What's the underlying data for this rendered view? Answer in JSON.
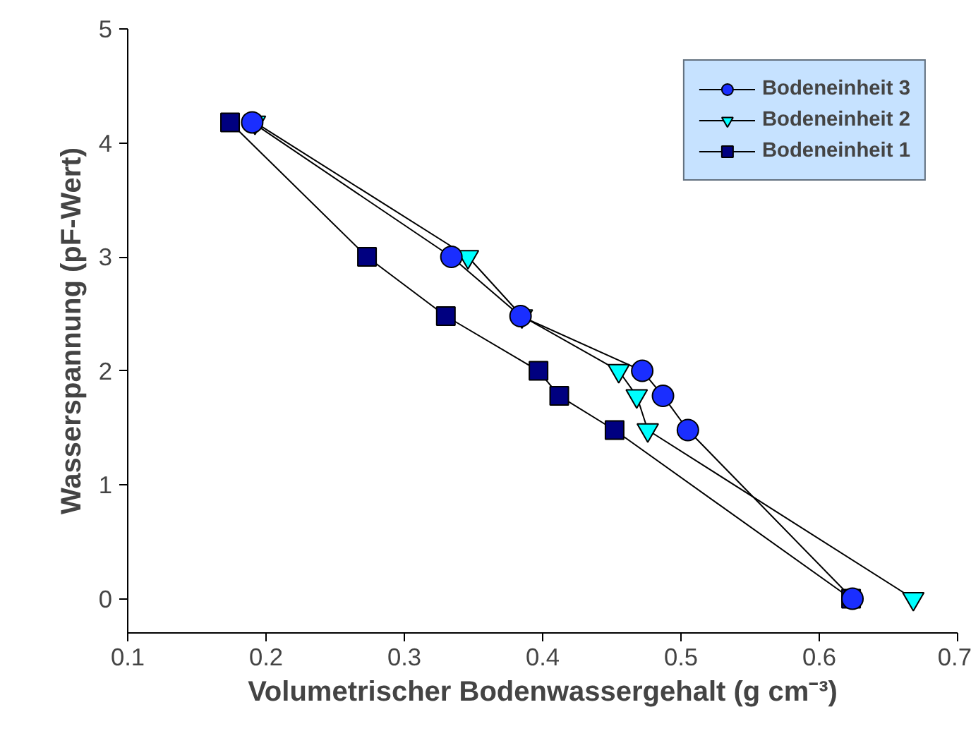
{
  "chart_data": {
    "type": "line",
    "xlabel": "Volumetrischer Bodenwassergehalt (g cm⁻³)",
    "ylabel": "Wasserspannung (pF-Wert)",
    "xlim": [
      0.1,
      0.7
    ],
    "xticks": [
      0.1,
      0.2,
      0.3,
      0.4,
      0.5,
      0.6,
      0.7
    ],
    "ylim": [
      -0.3,
      5
    ],
    "yticks": [
      0,
      1,
      2,
      3,
      4,
      5
    ],
    "grid": false,
    "legend": "top right",
    "series": [
      {
        "name": "Bodeneinheit 3",
        "color": "#1a2eff",
        "marker": "circle",
        "x": [
          0.19,
          0.334,
          0.384,
          0.472,
          0.487,
          0.505,
          0.624
        ],
        "values": [
          4.18,
          3.0,
          2.48,
          2.0,
          1.78,
          1.48,
          0
        ]
      },
      {
        "name": "Bodeneinheit 2",
        "color": "#00ffff",
        "marker": "triangle",
        "x": [
          0.192,
          0.346,
          0.385,
          0.455,
          0.468,
          0.476,
          0.668
        ],
        "values": [
          4.18,
          3.0,
          2.48,
          2.0,
          1.78,
          1.48,
          0
        ]
      },
      {
        "name": "Bodeneinheit 1",
        "color": "#000080",
        "marker": "square",
        "x": [
          0.174,
          0.273,
          0.33,
          0.397,
          0.412,
          0.452,
          0.623
        ],
        "values": [
          4.18,
          3.0,
          2.48,
          2.0,
          1.78,
          1.48,
          0
        ]
      }
    ]
  }
}
